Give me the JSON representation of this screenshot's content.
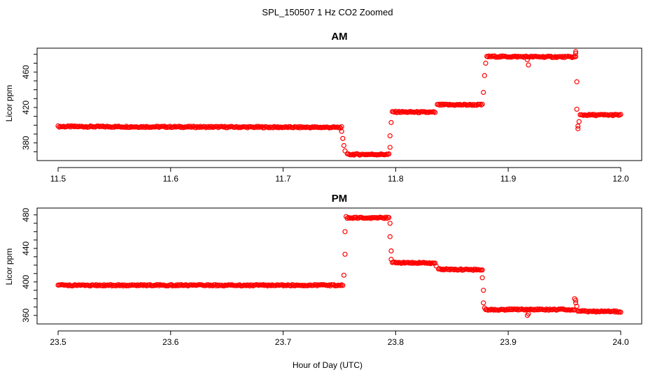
{
  "figure": {
    "title": "SPL_150507  1 Hz CO2 Zoomed",
    "xlabel": "Hour of Day (UTC)"
  },
  "chart_data": [
    {
      "type": "scatter",
      "title": "AM",
      "xlabel": "",
      "ylabel": "Licor ppm",
      "xlim": [
        11.5,
        12.0
      ],
      "ylim": [
        364,
        483
      ],
      "xticks": [
        11.5,
        11.6,
        11.7,
        11.8,
        11.9,
        12.0
      ],
      "xtick_labels": [
        "11.5",
        "11.6",
        "11.7",
        "11.8",
        "11.9",
        "12.0"
      ],
      "yticks": [
        380,
        420,
        460
      ],
      "ytick_labels": [
        "380",
        "420",
        "460"
      ],
      "grid": false,
      "legend": "none",
      "color": "#ff0000",
      "marker": "open-circle",
      "series": [
        {
          "segments": [
            {
              "x": [
                11.5,
                11.752
              ],
              "y": [
                398.5,
                397.5
              ]
            },
            {
              "x": [
                11.757,
                11.794
              ],
              "y": [
                367,
                367
              ]
            },
            {
              "x": [
                11.797,
                11.835
              ],
              "y": [
                415,
                414.5
              ]
            },
            {
              "x": [
                11.837,
                11.877
              ],
              "y": [
                423,
                423
              ]
            },
            {
              "x": [
                11.881,
                11.96
              ],
              "y": [
                477.5,
                477
              ]
            },
            {
              "x": [
                11.964,
                12.0
              ],
              "y": [
                411.5,
                411.5
              ]
            }
          ],
          "transition_points": [
            {
              "x": 11.752,
              "y": 393
            },
            {
              "x": 11.753,
              "y": 385
            },
            {
              "x": 11.754,
              "y": 377
            },
            {
              "x": 11.755,
              "y": 371
            },
            {
              "x": 11.795,
              "y": 375
            },
            {
              "x": 11.795,
              "y": 388
            },
            {
              "x": 11.796,
              "y": 403
            },
            {
              "x": 11.878,
              "y": 437
            },
            {
              "x": 11.879,
              "y": 456
            },
            {
              "x": 11.88,
              "y": 470
            },
            {
              "x": 11.917,
              "y": 474
            },
            {
              "x": 11.918,
              "y": 468
            },
            {
              "x": 11.96,
              "y": 483
            },
            {
              "x": 11.96,
              "y": 481
            },
            {
              "x": 11.961,
              "y": 449
            },
            {
              "x": 11.961,
              "y": 418
            },
            {
              "x": 11.962,
              "y": 399
            },
            {
              "x": 11.962,
              "y": 396
            },
            {
              "x": 11.963,
              "y": 404
            }
          ]
        }
      ]
    },
    {
      "type": "scatter",
      "title": "PM",
      "xlabel": "",
      "ylabel": "Licor ppm",
      "xlim": [
        23.5,
        24.0
      ],
      "ylim": [
        354,
        484
      ],
      "xticks": [
        23.5,
        23.6,
        23.7,
        23.8,
        23.9,
        24.0
      ],
      "xtick_labels": [
        "23.5",
        "23.6",
        "23.7",
        "23.8",
        "23.9",
        "24.0"
      ],
      "yticks": [
        360,
        400,
        440,
        480
      ],
      "ytick_labels": [
        "360",
        "400",
        "440",
        "480"
      ],
      "grid": false,
      "legend": "none",
      "color": "#ff0000",
      "marker": "open-circle",
      "series": [
        {
          "segments": [
            {
              "x": [
                23.5,
                23.753
              ],
              "y": [
                396,
                396
              ]
            },
            {
              "x": [
                23.757,
                23.794
              ],
              "y": [
                476.5,
                476.5
              ]
            },
            {
              "x": [
                23.797,
                23.835
              ],
              "y": [
                423,
                422.5
              ]
            },
            {
              "x": [
                23.838,
                23.877
              ],
              "y": [
                415,
                414.5
              ]
            },
            {
              "x": [
                23.88,
                23.959
              ],
              "y": [
                367,
                367
              ]
            },
            {
              "x": [
                23.962,
                24.0
              ],
              "y": [
                365,
                364.5
              ]
            }
          ],
          "transition_points": [
            {
              "x": 23.754,
              "y": 408
            },
            {
              "x": 23.755,
              "y": 433
            },
            {
              "x": 23.755,
              "y": 460
            },
            {
              "x": 23.756,
              "y": 478
            },
            {
              "x": 23.795,
              "y": 470
            },
            {
              "x": 23.795,
              "y": 454
            },
            {
              "x": 23.796,
              "y": 437
            },
            {
              "x": 23.796,
              "y": 427
            },
            {
              "x": 23.836,
              "y": 419
            },
            {
              "x": 23.877,
              "y": 405
            },
            {
              "x": 23.878,
              "y": 390
            },
            {
              "x": 23.878,
              "y": 375
            },
            {
              "x": 23.879,
              "y": 369
            },
            {
              "x": 23.917,
              "y": 360
            },
            {
              "x": 23.918,
              "y": 362
            },
            {
              "x": 23.959,
              "y": 380
            },
            {
              "x": 23.96,
              "y": 378
            },
            {
              "x": 23.96,
              "y": 375
            },
            {
              "x": 23.961,
              "y": 371
            }
          ]
        }
      ]
    }
  ]
}
